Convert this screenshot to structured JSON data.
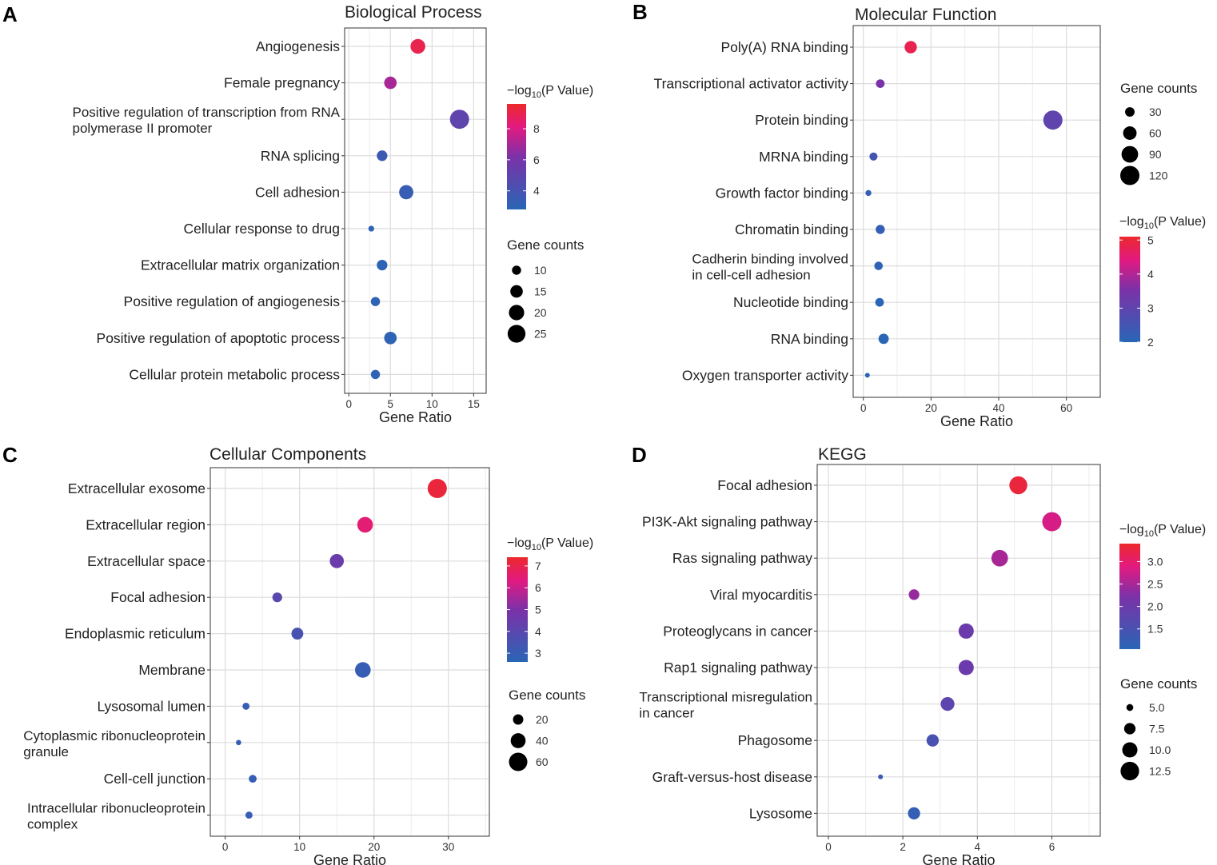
{
  "figure": {
    "x_axis_label": "Gene Ratio"
  },
  "chart_data": [
    {
      "panel": "A",
      "type": "scatter",
      "title": "Biological Process",
      "xlabel": "Gene Ratio",
      "xlim": [
        -0.5,
        16.5
      ],
      "xticks": [
        0,
        5,
        10,
        15
      ],
      "categories": [
        [
          "Angiogenesis"
        ],
        [
          "Female pregnancy"
        ],
        [
          "Positive regulation of transcription from RNA",
          "polymerase II promoter"
        ],
        [
          "RNA splicing"
        ],
        [
          "Cell adhesion"
        ],
        [
          "Cellular response to drug"
        ],
        [
          "Extracellular matrix organization"
        ],
        [
          "Positive regulation of angiogenesis"
        ],
        [
          "Positive regulation of apoptotic process"
        ],
        [
          "Cellular protein metabolic process"
        ]
      ],
      "gene_ratio": [
        8.3,
        5.0,
        13.3,
        4.0,
        6.9,
        2.7,
        4.0,
        3.2,
        5.0,
        3.2
      ],
      "gene_counts": [
        19,
        15,
        28,
        12,
        18,
        6,
        12,
        10,
        15,
        10
      ],
      "neg_log10_p": [
        9.0,
        7.0,
        5.0,
        3.6,
        3.4,
        3.0,
        3.0,
        3.0,
        3.0,
        3.0
      ],
      "color_scale": {
        "label_prefix": "−log",
        "label_sub": "10",
        "label_suffix": "(P Value)",
        "min": 2.8,
        "max": 9.6,
        "ticks": [
          4,
          6,
          8
        ]
      },
      "size_legend": {
        "title": "Gene counts",
        "values": [
          10,
          15,
          20,
          25
        ]
      },
      "size_domain": [
        5,
        28
      ]
    },
    {
      "panel": "B",
      "type": "scatter",
      "title": "Molecular Function",
      "xlabel": "Gene Ratio",
      "xlim": [
        -3,
        70
      ],
      "xticks": [
        0,
        20,
        40,
        60
      ],
      "categories": [
        [
          "Poly(A) RNA binding"
        ],
        [
          "Transcriptional activator activity"
        ],
        [
          "Protein binding"
        ],
        [
          "MRNA binding"
        ],
        [
          "Growth factor binding"
        ],
        [
          "Chromatin binding"
        ],
        [
          "Cadherin binding involved",
          "in cell-cell adhesion"
        ],
        [
          "Nucleotide binding"
        ],
        [
          "RNA binding"
        ],
        [
          "Oxygen transporter activity"
        ]
      ],
      "gene_ratio": [
        14.0,
        5.0,
        56.0,
        3.0,
        1.5,
        5.0,
        4.5,
        4.8,
        6.0,
        1.2
      ],
      "gene_counts": [
        50,
        25,
        120,
        22,
        12,
        28,
        24,
        25,
        35,
        8
      ],
      "neg_log10_p": [
        4.8,
        3.5,
        3.0,
        2.5,
        2.2,
        2.2,
        2.1,
        2.0,
        2.0,
        2.0
      ],
      "color_scale": {
        "label_prefix": "−log",
        "label_sub": "10",
        "label_suffix": "(P Value)",
        "min": 2,
        "max": 5.1,
        "ticks": [
          2,
          3,
          4,
          5
        ]
      },
      "size_legend": {
        "title": "Gene counts",
        "values": [
          30,
          60,
          90,
          120
        ]
      },
      "size_domain": [
        8,
        120
      ]
    },
    {
      "panel": "C",
      "type": "scatter",
      "title": "Cellular Components",
      "xlabel": "Gene Ratio",
      "xlim": [
        -2,
        35.5
      ],
      "xticks": [
        0,
        10,
        20,
        30
      ],
      "categories": [
        [
          "Extracellular exosome"
        ],
        [
          "Extracellular region"
        ],
        [
          "Extracellular space"
        ],
        [
          "Focal adhesion"
        ],
        [
          "Endoplasmic reticulum"
        ],
        [
          "Membrane"
        ],
        [
          "Lysosomal lumen"
        ],
        [
          "Cytoplasmic ribonucleoprotein",
          "granule"
        ],
        [
          "Cell-cell junction"
        ],
        [
          "Intracellular ribonucleoprotein",
          "complex"
        ]
      ],
      "gene_ratio": [
        28.5,
        18.8,
        15.0,
        7.0,
        9.7,
        18.5,
        2.8,
        1.8,
        3.7,
        3.2
      ],
      "gene_counts": [
        65,
        44,
        36,
        18,
        26,
        44,
        10,
        6,
        12,
        10
      ],
      "neg_log10_p": [
        7.2,
        6.5,
        4.5,
        4.0,
        3.5,
        3.0,
        3.0,
        3.0,
        3.0,
        3.0
      ],
      "color_scale": {
        "label_prefix": "−log",
        "label_sub": "10",
        "label_suffix": "(P Value)",
        "min": 2.6,
        "max": 7.4,
        "ticks": [
          3,
          4,
          5,
          6,
          7
        ]
      },
      "size_legend": {
        "title": "Gene counts",
        "values": [
          20,
          40,
          60
        ]
      },
      "size_domain": [
        5,
        65
      ]
    },
    {
      "panel": "D",
      "type": "scatter",
      "title": "KEGG",
      "xlabel": "Gene Ratio",
      "xlim": [
        -0.3,
        7.3
      ],
      "xticks": [
        0,
        2,
        4,
        6
      ],
      "categories": [
        [
          "Focal adhesion"
        ],
        [
          "PI3K-Akt signaling pathway"
        ],
        [
          "Ras signaling pathway"
        ],
        [
          "Viral myocarditis"
        ],
        [
          "Proteoglycans in cancer"
        ],
        [
          "Rap1 signaling pathway"
        ],
        [
          "Transcriptional misregulation",
          "in cancer"
        ],
        [
          "Phagosome"
        ],
        [
          "Graft-versus-host disease"
        ],
        [
          "Lysosome"
        ]
      ],
      "gene_ratio": [
        5.1,
        6.0,
        4.6,
        2.3,
        3.7,
        3.7,
        3.2,
        2.8,
        1.4,
        2.3
      ],
      "gene_counts": [
        12,
        13,
        11,
        7,
        10,
        10,
        9,
        8,
        4,
        8
      ],
      "neg_log10_p": [
        3.3,
        2.8,
        2.5,
        2.4,
        2.0,
        2.0,
        1.8,
        1.5,
        1.3,
        1.2
      ],
      "color_scale": {
        "label_prefix": "−log",
        "label_sub": "10",
        "label_suffix": "(P Value)",
        "min": 1.05,
        "max": 3.4,
        "ticks": [
          1.5,
          2.0,
          2.5,
          3.0
        ],
        "tick_format": "fixed1"
      },
      "size_legend": {
        "title": "Gene counts",
        "values": [
          5.0,
          7.5,
          10.0,
          12.5
        ],
        "format": "fixed1"
      },
      "size_domain": [
        4,
        13
      ]
    }
  ]
}
